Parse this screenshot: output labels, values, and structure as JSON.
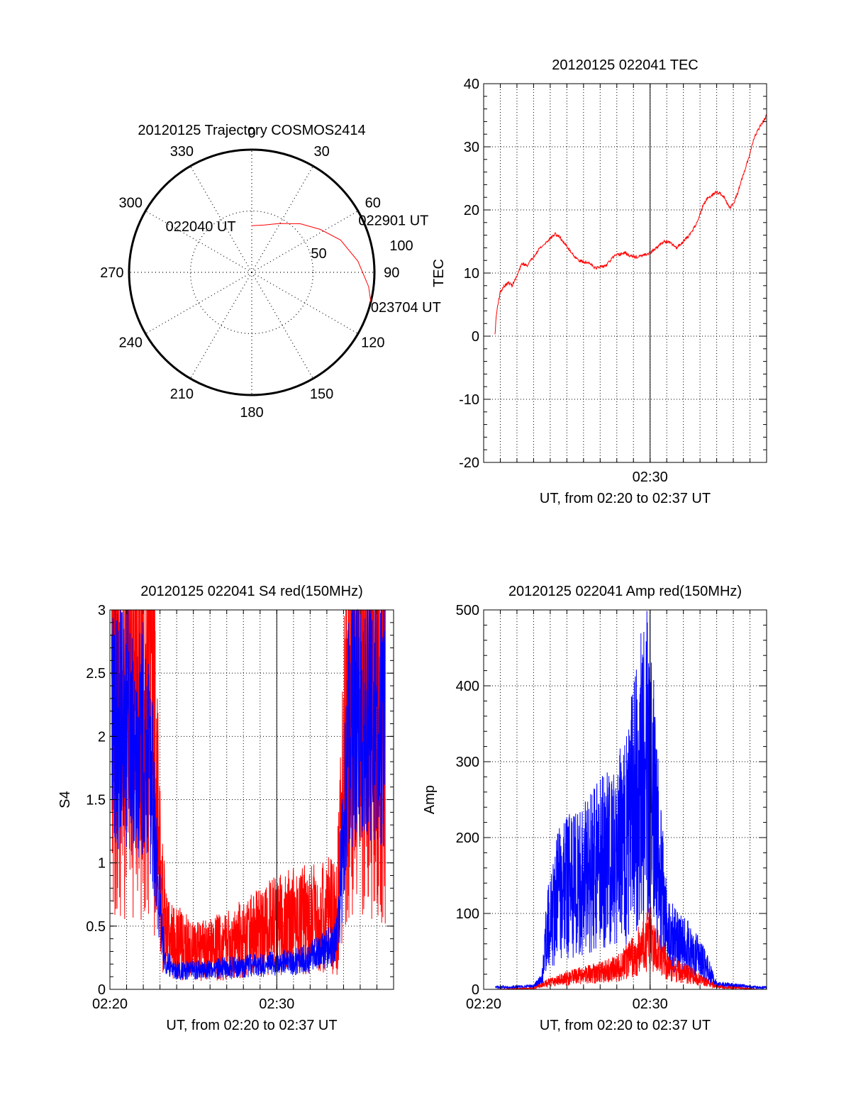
{
  "colors": {
    "red": "#ff0000",
    "blue": "#0000ff",
    "axis": "#000000",
    "grid": "#000000"
  },
  "chart_data": [
    {
      "id": "trajectory",
      "type": "polar",
      "title": "20120125 Trajectory COSMOS2414",
      "azimuth_labels": [
        "0",
        "30",
        "60",
        "90",
        "120",
        "150",
        "180",
        "210",
        "240",
        "270",
        "300",
        "330"
      ],
      "elevation_rings": [
        0,
        50
      ],
      "ring_labels": [
        "50",
        "100"
      ],
      "grid": true,
      "series": [
        {
          "color": "#ff0000",
          "points": [
            {
              "az": 0,
              "zen": 38
            },
            {
              "az": 15,
              "zen": 40
            },
            {
              "az": 30,
              "zen": 46
            },
            {
              "az": 45,
              "zen": 56
            },
            {
              "az": 58,
              "zen": 66
            },
            {
              "az": 70,
              "zen": 77
            },
            {
              "az": 84,
              "zen": 87
            },
            {
              "az": 97,
              "zen": 96
            },
            {
              "az": 104,
              "zen": 100
            }
          ]
        }
      ],
      "annotations": [
        {
          "text": "022040 UT",
          "az": 342,
          "zen": 40
        },
        {
          "text": "022901 UT",
          "az": 52,
          "zen": 70
        },
        {
          "text": "023704 UT",
          "az": 104,
          "zen": 100
        }
      ]
    },
    {
      "id": "tec",
      "type": "line",
      "title": "20120125 022041 TEC",
      "xlabel": "UT, from 02:20 to 02:37 UT",
      "ylabel": "TEC",
      "xlim": [
        20.0,
        37.0
      ],
      "ylim": [
        -20,
        40
      ],
      "yticks": [
        -20,
        -10,
        0,
        10,
        20,
        30,
        40
      ],
      "xticks": [
        {
          "value": 30,
          "label": "02:30"
        }
      ],
      "grid": true,
      "series": [
        {
          "color": "#ff0000",
          "noise": 0.4,
          "x": [
            20.68,
            20.75,
            20.85,
            21.0,
            21.2,
            21.5,
            21.7,
            22.0,
            22.3,
            22.6,
            22.9,
            23.3,
            23.6,
            23.8,
            24.0,
            24.3,
            24.6,
            25.0,
            25.3,
            25.6,
            26.0,
            26.4,
            26.7,
            27.0,
            27.4,
            27.8,
            28.2,
            28.5,
            28.8,
            29.2,
            29.6,
            30.0,
            30.4,
            30.8,
            31.2,
            31.6,
            31.9,
            32.3,
            32.6,
            32.9,
            33.2,
            33.5,
            33.8,
            34.0,
            34.3,
            34.5,
            34.8,
            35.0,
            35.3,
            35.6,
            35.9,
            36.2,
            36.5,
            36.8,
            37.0
          ],
          "y": [
            0.2,
            3.0,
            5.0,
            7.0,
            7.8,
            8.5,
            8.0,
            9.5,
            11.5,
            11.2,
            12.2,
            13.8,
            14.4,
            15.0,
            15.5,
            16.2,
            15.6,
            14.2,
            13.2,
            12.2,
            11.7,
            11.6,
            10.8,
            10.9,
            11.3,
            12.6,
            13.0,
            13.2,
            12.7,
            12.5,
            12.8,
            13.2,
            14.0,
            15.0,
            14.8,
            14.0,
            14.8,
            15.8,
            17.0,
            18.5,
            20.8,
            22.0,
            22.5,
            22.8,
            22.5,
            21.8,
            20.3,
            21.0,
            23.0,
            25.5,
            28.0,
            31.0,
            32.8,
            34.0,
            35.0
          ]
        }
      ]
    },
    {
      "id": "s4",
      "type": "line",
      "title": "20120125 022041 S4 red(150MHz)",
      "xlabel": "UT, from 02:20 to 02:37 UT",
      "ylabel": "S4",
      "xlim": [
        20.0,
        37.0
      ],
      "ylim": [
        0,
        3
      ],
      "yticks": [
        0,
        0.5,
        1,
        1.5,
        2,
        2.5,
        3
      ],
      "xticks": [
        {
          "value": 20,
          "label": "02:20"
        },
        {
          "value": 30,
          "label": "02:30"
        }
      ],
      "grid": true,
      "series": [
        {
          "color": "#ff0000",
          "noise": 0.8,
          "x": [
            20.1,
            21.0,
            21.9,
            22.5,
            22.8,
            23.1,
            23.4,
            24.0,
            25.0,
            26.0,
            27.0,
            28.0,
            29.0,
            30.0,
            31.0,
            32.0,
            33.0,
            33.6,
            34.0,
            34.3,
            34.6,
            35.0,
            35.5,
            36.0,
            36.5
          ],
          "y": [
            2.7,
            2.7,
            2.7,
            2.6,
            1.6,
            0.7,
            0.45,
            0.38,
            0.3,
            0.32,
            0.35,
            0.4,
            0.45,
            0.5,
            0.55,
            0.55,
            0.6,
            0.55,
            1.6,
            2.3,
            2.6,
            2.6,
            2.6,
            2.6,
            2.6
          ]
        },
        {
          "color": "#0000ff",
          "noise": 0.5,
          "x": [
            20.1,
            21.0,
            21.9,
            22.5,
            22.8,
            23.1,
            23.4,
            24.0,
            25.0,
            26.0,
            27.0,
            28.0,
            29.0,
            30.0,
            31.0,
            32.0,
            33.0,
            33.6,
            34.0,
            34.3,
            34.6,
            35.0,
            35.5,
            36.0,
            36.5
          ],
          "y": [
            2.2,
            2.1,
            2.0,
            1.6,
            1.0,
            0.45,
            0.2,
            0.15,
            0.15,
            0.16,
            0.17,
            0.18,
            0.2,
            0.2,
            0.22,
            0.25,
            0.32,
            0.38,
            1.2,
            2.0,
            2.3,
            2.3,
            2.2,
            2.2,
            2.2
          ]
        }
      ]
    },
    {
      "id": "amp",
      "type": "line",
      "title": "20120125 022041 Amp red(150MHz)",
      "xlabel": "UT, from 02:20 to 02:37 UT",
      "ylabel": "Amp",
      "xlim": [
        20.0,
        37.0
      ],
      "ylim": [
        0,
        500
      ],
      "yticks": [
        0,
        100,
        200,
        300,
        400,
        500
      ],
      "xticks": [
        {
          "value": 20,
          "label": "02:20"
        },
        {
          "value": 30,
          "label": "02:30"
        }
      ],
      "grid": true,
      "series": [
        {
          "color": "#0000ff",
          "noise": 0.9,
          "x": [
            20.7,
            23.0,
            23.5,
            23.8,
            24.5,
            25.5,
            26.5,
            27.5,
            28.5,
            29.0,
            29.5,
            30.0,
            30.5,
            31.0,
            31.5,
            32.5,
            33.3,
            34.0,
            36.5,
            37.0
          ],
          "y": [
            2,
            3,
            10,
            60,
            100,
            110,
            120,
            140,
            150,
            190,
            230,
            230,
            140,
            60,
            50,
            40,
            25,
            5,
            2,
            2
          ]
        },
        {
          "color": "#ff0000",
          "noise": 0.8,
          "x": [
            20.7,
            23.0,
            24.0,
            25.0,
            26.0,
            27.0,
            28.0,
            28.5,
            29.0,
            29.5,
            30.0,
            30.5,
            31.0,
            31.5,
            32.0,
            33.0,
            34.0,
            36.5,
            37.0
          ],
          "y": [
            0,
            1,
            8,
            12,
            15,
            18,
            22,
            28,
            35,
            45,
            55,
            40,
            25,
            20,
            18,
            10,
            3,
            0,
            0
          ]
        }
      ]
    }
  ]
}
